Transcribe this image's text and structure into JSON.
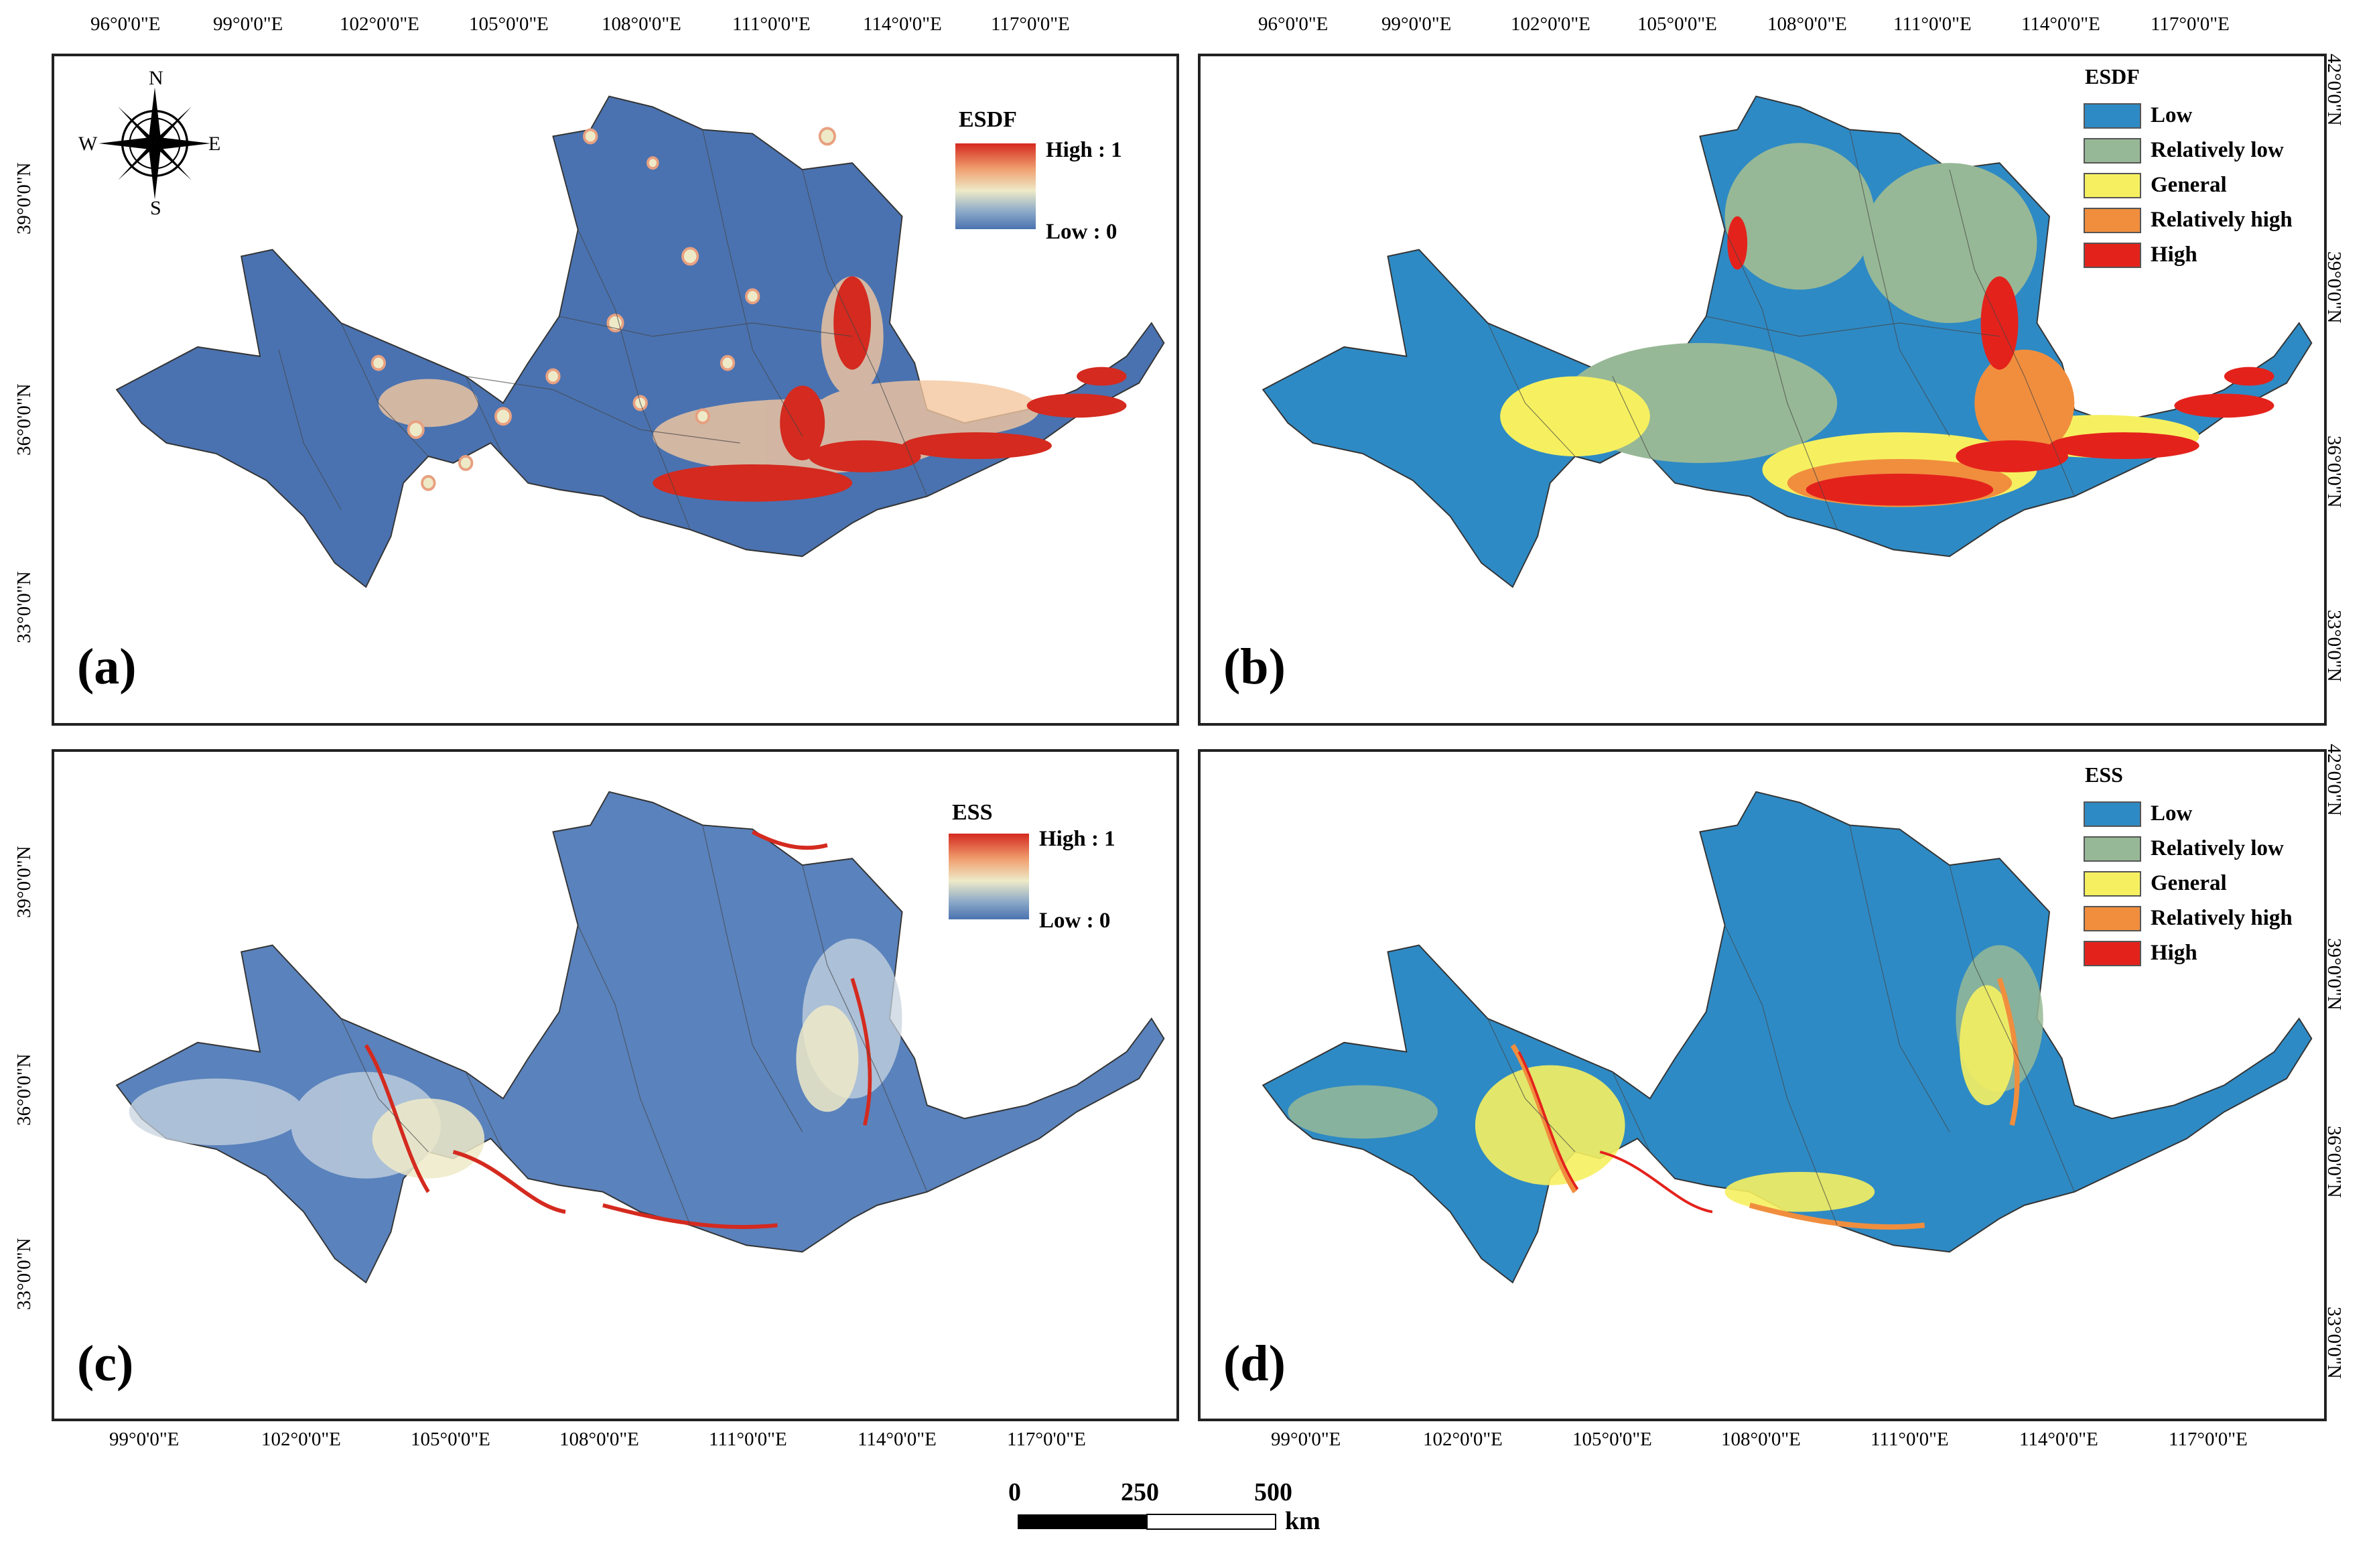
{
  "colors": {
    "cont_low": "#4a72b0",
    "cont_mid": "#eeeac8",
    "cont_high": "#d42a1f",
    "class_low": "#2e8ac4",
    "class_rel_low": "#97b896",
    "class_general": "#f6f060",
    "class_rel_high": "#f08e3e",
    "class_high": "#e4221c"
  },
  "compass": {
    "n": "N",
    "s": "S",
    "e": "E",
    "w": "W"
  },
  "panels": {
    "a": {
      "letter": "(a)",
      "legend_title": "ESDF",
      "high_label": "High : 1",
      "low_label": "Low : 0"
    },
    "b": {
      "letter": "(b)",
      "legend_title": "ESDF"
    },
    "c": {
      "letter": "(c)",
      "legend_title": "ESS",
      "high_label": "High : 1",
      "low_label": "Low : 0"
    },
    "d": {
      "letter": "(d)",
      "legend_title": "ESS"
    }
  },
  "class_labels": [
    "Low",
    "Relatively low",
    "General",
    "Relatively high",
    "High"
  ],
  "axes": {
    "top_lon_a": [
      "96°0'0\"E",
      "99°0'0\"E",
      "102°0'0\"E",
      "105°0'0\"E",
      "108°0'0\"E",
      "111°0'0\"E",
      "114°0'0\"E",
      "117°0'0\"E"
    ],
    "top_lon_b": [
      "96°0'0\"E",
      "99°0'0\"E",
      "102°0'0\"E",
      "105°0'0\"E",
      "108°0'0\"E",
      "111°0'0\"E",
      "114°0'0\"E",
      "117°0'0\"E"
    ],
    "bottom_lon_c": [
      "99°0'0\"E",
      "102°0'0\"E",
      "105°0'0\"E",
      "108°0'0\"E",
      "111°0'0\"E",
      "114°0'0\"E",
      "117°0'0\"E"
    ],
    "bottom_lon_d": [
      "99°0'0\"E",
      "102°0'0\"E",
      "105°0'0\"E",
      "108°0'0\"E",
      "111°0'0\"E",
      "114°0'0\"E",
      "117°0'0\"E"
    ],
    "left_lat_a": [
      "39°0'0\"N",
      "36°0'0\"N",
      "33°0'0\"N"
    ],
    "left_lat_c": [
      "39°0'0\"N",
      "36°0'0\"N",
      "33°0'0\"N"
    ],
    "right_lat_b": [
      "42°0'0\"N",
      "39°0'0\"N",
      "36°0'0\"N",
      "33°0'0\"N"
    ],
    "right_lat_d": [
      "42°0'0\"N",
      "39°0'0\"N",
      "36°0'0\"N",
      "33°0'0\"N"
    ]
  },
  "scale_bar": {
    "labels": [
      "0",
      "250",
      "500"
    ],
    "unit": "km"
  }
}
